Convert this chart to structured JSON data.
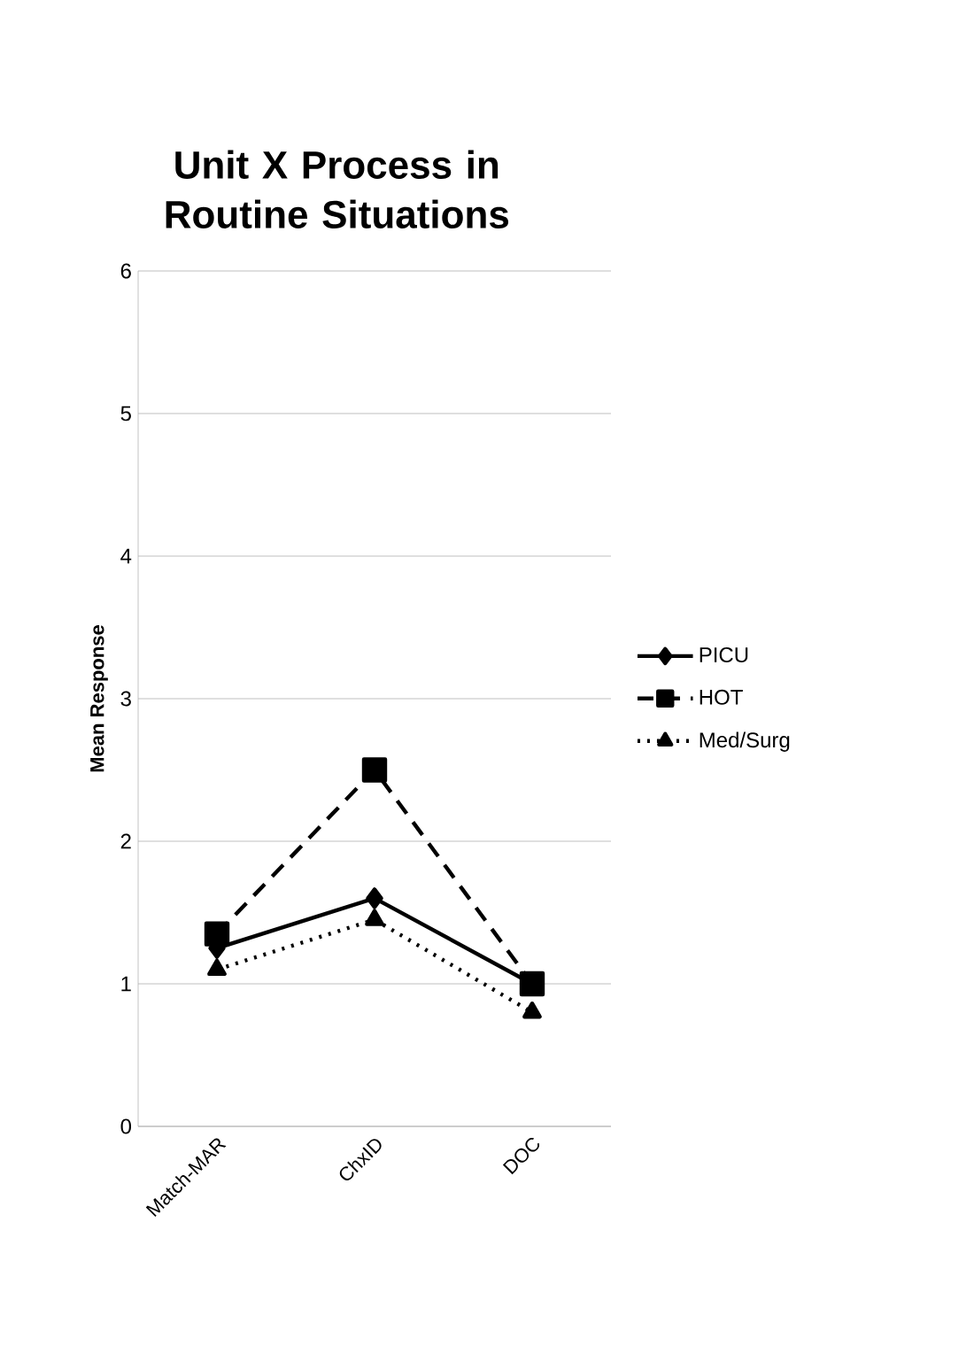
{
  "chart_data": {
    "type": "line",
    "title": "Unit X Process in Routine Situations",
    "ylabel": "Mean Response",
    "categories": [
      "Match-MAR",
      "ChxID",
      "DOC"
    ],
    "series": [
      {
        "name": "PICU",
        "color": "#000000",
        "marker": "diamond",
        "line_style": "solid",
        "values": [
          1.25,
          1.6,
          1.0
        ]
      },
      {
        "name": "HOT",
        "color": "#000000",
        "marker": "square",
        "line_style": "dashed",
        "values": [
          1.35,
          2.5,
          1.0
        ]
      },
      {
        "name": "Med/Surg",
        "color": "#000000",
        "marker": "triangle",
        "line_style": "dotted",
        "values": [
          1.1,
          1.45,
          0.8
        ]
      }
    ],
    "ylim": [
      0,
      6
    ],
    "yticks": [
      0,
      1,
      2,
      3,
      4,
      5,
      6
    ],
    "grid": "y",
    "legend": "right"
  }
}
